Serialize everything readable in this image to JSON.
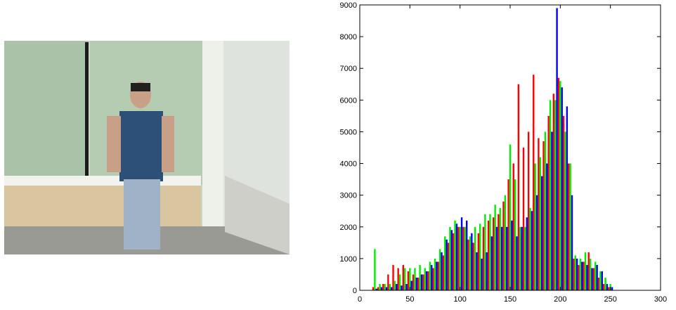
{
  "chart_data": {
    "type": "bar",
    "x": [
      0,
      5,
      10,
      15,
      20,
      25,
      30,
      35,
      40,
      45,
      50,
      55,
      60,
      65,
      70,
      75,
      80,
      85,
      90,
      95,
      100,
      105,
      110,
      115,
      120,
      125,
      130,
      135,
      140,
      145,
      150,
      155,
      160,
      165,
      170,
      175,
      180,
      185,
      190,
      195,
      200,
      205,
      210,
      215,
      220,
      225,
      230,
      235,
      240,
      245,
      250,
      255
    ],
    "series": [
      {
        "color": "#ff0000",
        "values": [
          0,
          0,
          0,
          100,
          100,
          200,
          500,
          800,
          700,
          800,
          600,
          500,
          400,
          500,
          600,
          700,
          900,
          1100,
          1500,
          1800,
          2000,
          2000,
          1600,
          1500,
          1800,
          2000,
          2200,
          2300,
          2400,
          2800,
          3500,
          4000,
          6500,
          4500,
          5000,
          6800,
          4800,
          4700,
          5500,
          6200,
          6700,
          5500,
          4000,
          1000,
          800,
          900,
          1200,
          700,
          400,
          200,
          100,
          0
        ]
      },
      {
        "color": "#00ee00",
        "values": [
          0,
          0,
          0,
          1300,
          200,
          200,
          200,
          300,
          500,
          700,
          700,
          700,
          800,
          700,
          900,
          1000,
          1300,
          1700,
          2000,
          2200,
          2000,
          2000,
          1700,
          2000,
          2100,
          2400,
          2400,
          2700,
          2600,
          3000,
          4600,
          3500,
          2000,
          2000,
          2600,
          4000,
          4200,
          5000,
          6000,
          6000,
          6600,
          5000,
          4000,
          1100,
          1000,
          1200,
          1000,
          900,
          600,
          400,
          200,
          0
        ]
      },
      {
        "color": "#0000ff",
        "values": [
          0,
          0,
          0,
          50,
          100,
          100,
          100,
          200,
          150,
          200,
          300,
          400,
          500,
          600,
          800,
          900,
          1200,
          1600,
          1900,
          2100,
          2300,
          2200,
          1800,
          1200,
          1000,
          1200,
          1700,
          2000,
          2000,
          2000,
          2200,
          1700,
          2000,
          2300,
          2500,
          3000,
          3600,
          4000,
          5000,
          8900,
          6400,
          5800,
          3000,
          1000,
          900,
          800,
          700,
          800,
          600,
          200,
          100,
          0
        ]
      }
    ],
    "xlim": [
      0,
      300
    ],
    "xticks": [
      0,
      50,
      100,
      150,
      200,
      250,
      300
    ],
    "ylim": [
      0,
      9000
    ],
    "yticks": [
      0,
      1000,
      2000,
      3000,
      4000,
      5000,
      6000,
      7000,
      8000,
      9000
    ]
  }
}
